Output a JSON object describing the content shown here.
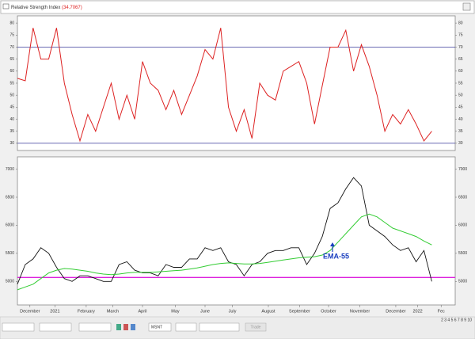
{
  "chart_data": [
    {
      "type": "line",
      "title": "Relative Strength Index",
      "title_value": "(34.7067)",
      "x": [
        0,
        1,
        2,
        3,
        4,
        5,
        6,
        7,
        8,
        9,
        10,
        11,
        12,
        13,
        14,
        15,
        16,
        17,
        18,
        19,
        20,
        21,
        22,
        23,
        24,
        25,
        26,
        27,
        28,
        29,
        30,
        31,
        32,
        33,
        34,
        35,
        36,
        37,
        38,
        39,
        40,
        41,
        42,
        43,
        44,
        45,
        46,
        47,
        48,
        49,
        50,
        51,
        52,
        53
      ],
      "xlim": [
        0,
        56
      ],
      "ylim": [
        27,
        83
      ],
      "yticks": [
        30,
        35,
        40,
        45,
        50,
        55,
        60,
        65,
        70,
        75,
        80
      ],
      "hlines": [
        {
          "value": 70,
          "color": "#3a3a9a"
        },
        {
          "value": 30,
          "color": "#3a3a9a"
        }
      ],
      "series": [
        {
          "color": "#dd2222",
          "values": [
            57,
            56,
            78,
            65,
            65,
            78,
            55,
            42,
            31,
            42,
            35,
            45,
            55,
            40,
            50,
            40,
            64,
            55,
            52,
            44,
            52,
            42,
            50,
            58,
            69,
            65,
            78,
            45,
            35,
            44,
            32,
            55,
            50,
            48,
            60,
            62,
            64,
            55,
            38,
            54,
            70,
            70,
            77,
            60,
            71,
            62,
            50,
            35,
            42,
            38,
            44,
            38,
            31,
            35
          ]
        }
      ]
    },
    {
      "type": "line",
      "x": [
        0,
        1,
        2,
        3,
        4,
        5,
        6,
        7,
        8,
        9,
        10,
        11,
        12,
        13,
        14,
        15,
        16,
        17,
        18,
        19,
        20,
        21,
        22,
        23,
        24,
        25,
        26,
        27,
        28,
        29,
        30,
        31,
        32,
        33,
        34,
        35,
        36,
        37,
        38,
        39,
        40,
        41,
        42,
        43,
        44,
        45,
        46,
        47,
        48,
        49,
        50,
        51,
        52,
        53
      ],
      "xlim": [
        0,
        56
      ],
      "xticks": [
        {
          "value": 1.6,
          "label": "December"
        },
        {
          "value": 4.8,
          "label": "2021"
        },
        {
          "value": 8.8,
          "label": "February"
        },
        {
          "value": 12.2,
          "label": "March"
        },
        {
          "value": 16,
          "label": "April"
        },
        {
          "value": 20.2,
          "label": "May"
        },
        {
          "value": 24,
          "label": "June"
        },
        {
          "value": 27.5,
          "label": "July"
        },
        {
          "value": 32.1,
          "label": "August"
        },
        {
          "value": 36.1,
          "label": "September"
        },
        {
          "value": 39.8,
          "label": "October"
        },
        {
          "value": 43.8,
          "label": "November"
        },
        {
          "value": 48.4,
          "label": "December"
        },
        {
          "value": 51.2,
          "label": "2022"
        },
        {
          "value": 54.2,
          "label": "Fec"
        }
      ],
      "ylim": [
        4580,
        7220
      ],
      "yticks": [
        5000,
        5500,
        6000,
        6500,
        7000
      ],
      "hlines": [
        {
          "value": 5070,
          "color": "#dd22dd"
        }
      ],
      "annotation": "EMA-55",
      "series": [
        {
          "color": "#111111",
          "values": [
            4950,
            5300,
            5400,
            5600,
            5500,
            5250,
            5050,
            5000,
            5100,
            5100,
            5050,
            5000,
            5000,
            5300,
            5350,
            5200,
            5150,
            5150,
            5100,
            5300,
            5250,
            5250,
            5400,
            5400,
            5600,
            5550,
            5600,
            5350,
            5300,
            5100,
            5300,
            5350,
            5500,
            5550,
            5550,
            5600,
            5600,
            5300,
            5500,
            5800,
            6300,
            6400,
            6650,
            6850,
            6700,
            6000,
            5900,
            5800,
            5650,
            5550,
            5600,
            5350,
            5550,
            5000
          ]
        },
        {
          "name": "EMA-55",
          "color": "#33cc33",
          "values": [
            4850,
            4900,
            4950,
            5050,
            5150,
            5200,
            5230,
            5220,
            5200,
            5180,
            5150,
            5130,
            5120,
            5130,
            5150,
            5160,
            5160,
            5160,
            5170,
            5180,
            5190,
            5200,
            5220,
            5240,
            5270,
            5300,
            5320,
            5330,
            5320,
            5310,
            5310,
            5320,
            5340,
            5360,
            5380,
            5400,
            5420,
            5430,
            5440,
            5470,
            5550,
            5700,
            5850,
            6000,
            6150,
            6200,
            6150,
            6050,
            5950,
            5900,
            5850,
            5800,
            5720,
            5650
          ]
        }
      ]
    }
  ],
  "toolbar": {
    "symbol": "MSNT",
    "button": "Trade",
    "pages": "2 3 4 5 6 7 8 9 10"
  }
}
